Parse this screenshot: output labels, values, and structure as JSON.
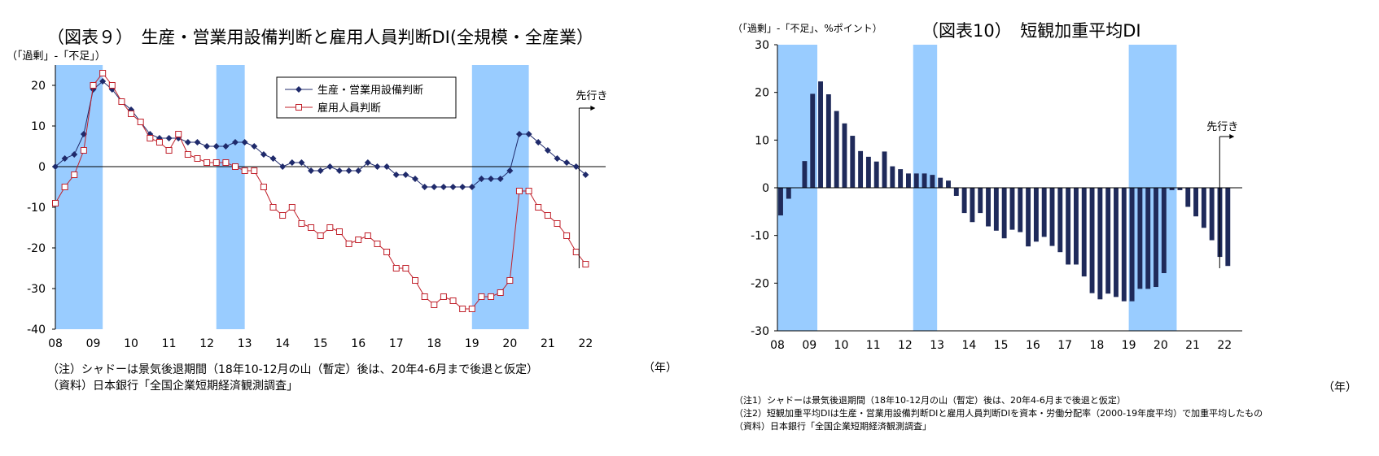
{
  "chart_data": [
    {
      "type": "line",
      "title": "（図表９）　生産・営業用設備判断と雇用人員判断DI(全規模・全産業）",
      "ylabel": "（「過剰」-「不足」）",
      "xlabel": "（年）",
      "ylim": [
        -40,
        25
      ],
      "yticks": [
        -40,
        -30,
        -20,
        -10,
        0,
        10,
        20
      ],
      "xlim": [
        2008,
        2022.4
      ],
      "xticks": [
        "08",
        "09",
        "10",
        "11",
        "12",
        "13",
        "14",
        "15",
        "16",
        "17",
        "18",
        "19",
        "20",
        "21",
        "22"
      ],
      "shading": [
        [
          2008.0,
          2009.25
        ],
        [
          2012.25,
          2013.0
        ],
        [
          2019.0,
          2020.5
        ]
      ],
      "forecast_label": "先行き",
      "legend_position": "top-center",
      "series": [
        {
          "name": "生産・営業用設備判断",
          "color": "#1f2a6b",
          "marker": "diamond",
          "values": [
            0,
            2,
            3,
            8,
            19,
            21,
            19,
            16,
            14,
            11,
            8,
            7,
            7,
            7,
            6,
            6,
            5,
            5,
            5,
            6,
            6,
            5,
            3,
            2,
            0,
            1,
            1,
            -1,
            -1,
            0,
            -1,
            -1,
            -1,
            1,
            0,
            0,
            -2,
            -2,
            -3,
            -5,
            -5,
            -5,
            -5,
            -5,
            -5,
            -3,
            -3,
            -3,
            -1,
            8,
            8,
            6,
            4,
            2,
            1,
            0,
            -2
          ]
        },
        {
          "name": "雇用人員判断",
          "color": "#c0202a",
          "marker": "square",
          "values": [
            -9,
            -5,
            -2,
            4,
            20,
            23,
            20,
            16,
            13,
            11,
            7,
            6,
            4,
            8,
            3,
            2,
            1,
            1,
            1,
            0,
            -1,
            -1,
            -5,
            -10,
            -12,
            -10,
            -14,
            -15,
            -17,
            -15,
            -16,
            -19,
            -18,
            -17,
            -19,
            -21,
            -25,
            -25,
            -28,
            -32,
            -34,
            -32,
            -33,
            -35,
            -35,
            -32,
            -32,
            -31,
            -28,
            -6,
            -6,
            -10,
            -12,
            -14,
            -17,
            -21,
            -24
          ]
        }
      ],
      "notes": [
        "（注）シャドーは景気後退期間（18年10-12月の山（暫定）後は、20年4-6月まで後退と仮定）",
        "（資料）日本銀行「全国企業短期経済観測調査」"
      ]
    },
    {
      "type": "bar",
      "title": "（図表10）　短観加重平均DI",
      "ylabel": "（「過剰」-「不足」、%ポイント）",
      "xlabel": "（年）",
      "ylim": [
        -30,
        30
      ],
      "yticks": [
        -30,
        -20,
        -10,
        0,
        10,
        20,
        30
      ],
      "xlim": [
        2008,
        2022.4
      ],
      "xticks": [
        "08",
        "09",
        "10",
        "11",
        "12",
        "13",
        "14",
        "15",
        "16",
        "17",
        "18",
        "19",
        "20",
        "21",
        "22"
      ],
      "shading": [
        [
          2008.0,
          2009.25
        ],
        [
          2012.25,
          2013.0
        ],
        [
          2019.0,
          2020.5
        ]
      ],
      "forecast_label": "先行き",
      "bar_color": "#1f2a5a",
      "values": [
        -5.8,
        -2.3,
        0.0,
        5.6,
        19.7,
        22.3,
        19.6,
        16.1,
        13.5,
        10.9,
        7.7,
        6.5,
        5.5,
        7.6,
        4.5,
        3.9,
        3.0,
        3.0,
        3.0,
        2.7,
        2.1,
        1.5,
        -1.7,
        -5.3,
        -7.2,
        -5.3,
        -8.1,
        -9.0,
        -10.6,
        -8.8,
        -9.3,
        -12.3,
        -11.3,
        -10.3,
        -12.2,
        -13.5,
        -16.1,
        -16.1,
        -18.6,
        -22.1,
        -23.4,
        -22.2,
        -22.9,
        -23.8,
        -23.8,
        -21.2,
        -21.2,
        -20.8,
        -17.9,
        -0.5,
        -0.5,
        -4.0,
        -6.0,
        -8.4,
        -11.0,
        -14.5,
        -16.4
      ],
      "notes": [
        "（注1）シャドーは景気後退期間（18年10-12月の山（暫定）後は、20年4-6月まで後退と仮定）",
        "（注2）短観加重平均DIは生産・営業用設備判断DIと雇用人員判断DIを資本・労働分配率（2000-19年度平均）で加重平均したもの",
        "（資料）日本銀行「全国企業短期経済観測調査」"
      ]
    }
  ]
}
